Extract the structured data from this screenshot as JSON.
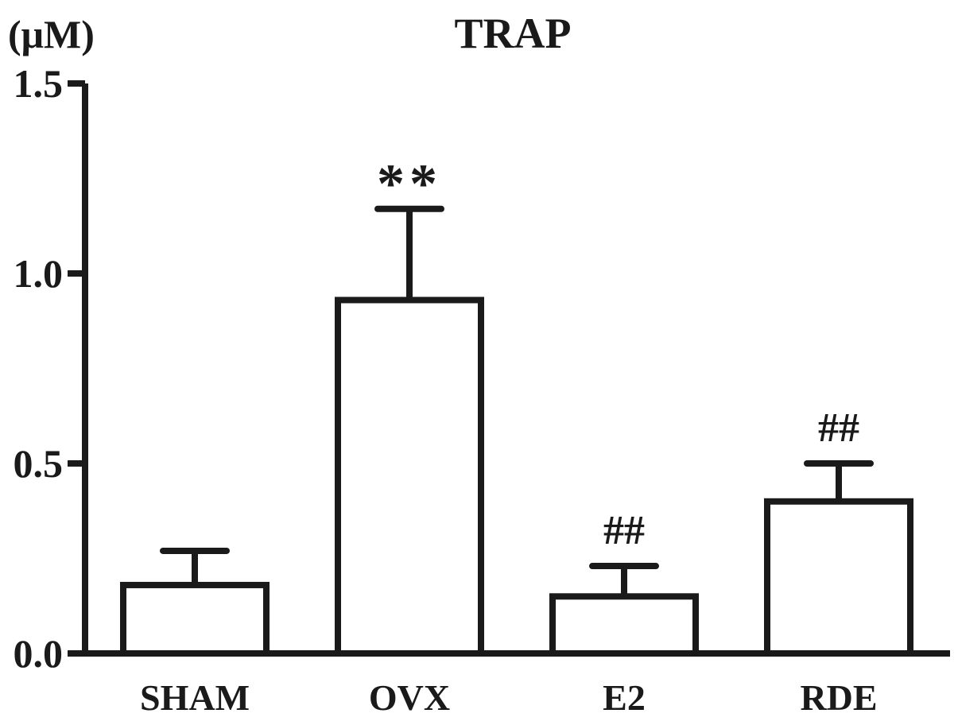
{
  "chart_data": {
    "type": "bar",
    "title": "TRAP",
    "unit_label": "(μM)",
    "xlabel": "",
    "ylabel": "",
    "categories": [
      "SHAM",
      "OVX",
      "E2",
      "RDE"
    ],
    "values": [
      0.18,
      0.93,
      0.15,
      0.4
    ],
    "error_upper": [
      0.27,
      1.17,
      0.23,
      0.5
    ],
    "annotations": [
      "",
      "**",
      "##",
      "##"
    ],
    "ylim": [
      0,
      1.5
    ],
    "yticks": [
      0.0,
      0.5,
      1.0,
      1.5
    ],
    "ytick_labels": [
      "0.0",
      "0.5",
      "1.0",
      "1.5"
    ],
    "grid": false,
    "legend": "none",
    "bar_fill": "#ffffff",
    "stroke_color": "#1a1a1a"
  }
}
